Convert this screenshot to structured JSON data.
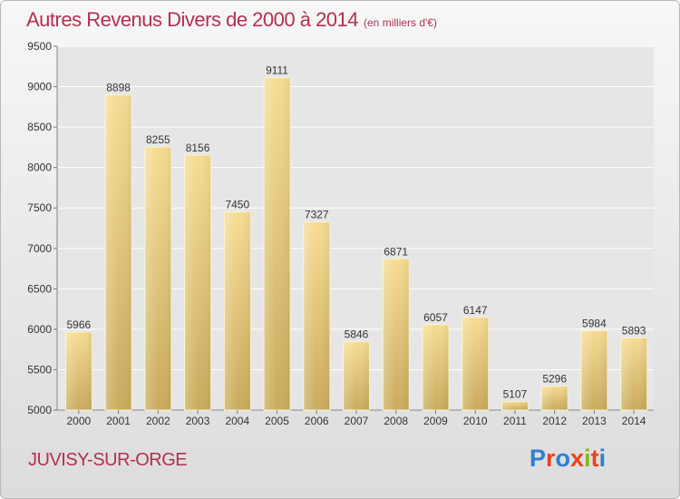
{
  "chart_data": {
    "type": "bar",
    "title": "Autres Revenus Divers de 2000 à 2014",
    "subtitle": "(en milliers d'€)",
    "categories": [
      "2000",
      "2001",
      "2002",
      "2003",
      "2004",
      "2005",
      "2006",
      "2007",
      "2008",
      "2009",
      "2010",
      "2011",
      "2012",
      "2013",
      "2014"
    ],
    "values": [
      5966,
      8898,
      8255,
      8156,
      7450,
      9111,
      7327,
      5846,
      6871,
      6057,
      6147,
      5107,
      5296,
      5984,
      5893
    ],
    "ylim": [
      5000,
      9500
    ],
    "yticks": [
      5000,
      5500,
      6000,
      6500,
      7000,
      7500,
      8000,
      8500,
      9000,
      9500
    ],
    "grid": true,
    "bar_color": "#e8c877"
  },
  "footer": {
    "location": "JUVISY-SUR-ORGE",
    "brand": "Proxiti",
    "brand_colors": [
      "#2f7fd0",
      "#e8431e",
      "#2f7fd0",
      "#e8431e",
      "#89b81e",
      "#e8431e",
      "#2f7fd0"
    ]
  }
}
